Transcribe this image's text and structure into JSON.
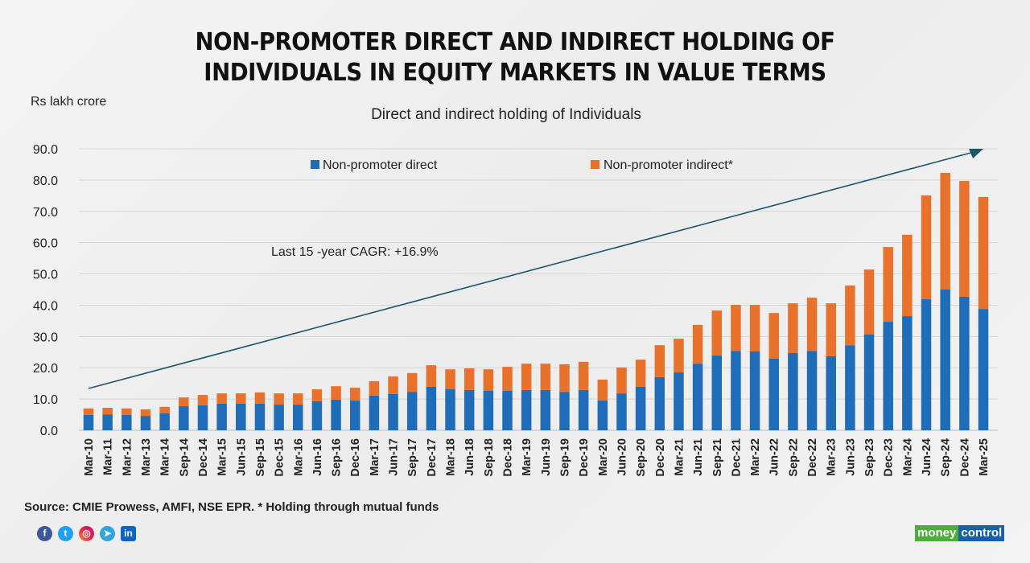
{
  "title_line1": "NON-PROMOTER DIRECT AND INDIRECT HOLDING OF",
  "title_line2": "INDIVIDUALS IN EQUITY MARKETS IN VALUE TERMS",
  "source": "Source: CMIE Prowess, AMFI, NSE EPR. * Holding through mutual funds",
  "logo": {
    "part1": "money",
    "part2": "control"
  },
  "social_icons": [
    "facebook-icon",
    "twitter-icon",
    "instagram-icon",
    "telegram-icon",
    "linkedin-icon"
  ],
  "colors": {
    "direct": "#1f6cb9",
    "indirect": "#e8712b",
    "arrow": "#1d5470"
  },
  "chart_data": {
    "type": "bar",
    "stacked": true,
    "title": "Direct and indirect holding of Individuals",
    "ylabel": "Rs lakh crore",
    "xlabel": "",
    "ylim": [
      0,
      90
    ],
    "yticks": [
      "0.0",
      "10.0",
      "20.0",
      "30.0",
      "40.0",
      "50.0",
      "60.0",
      "70.0",
      "80.0",
      "90.0"
    ],
    "grid": true,
    "legend_placement": "top",
    "annotation": "Last 15 -year CAGR: +16.9%",
    "categories": [
      "Mar-10",
      "Mar-11",
      "Mar-12",
      "Mar-13",
      "Mar-14",
      "Sep-14",
      "Dec-14",
      "Mar-15",
      "Jun-15",
      "Sep-15",
      "Dec-15",
      "Mar-16",
      "Jun-16",
      "Sep-16",
      "Dec-16",
      "Mar-17",
      "Jun-17",
      "Sep-17",
      "Dec-17",
      "Mar-18",
      "Jun-18",
      "Sep-18",
      "Dec-18",
      "Mar-19",
      "Jun-19",
      "Sep-19",
      "Dec-19",
      "Mar-20",
      "Jun-20",
      "Sep-20",
      "Dec-20",
      "Mar-21",
      "Jun-21",
      "Sep-21",
      "Dec-21",
      "Mar-22",
      "Jun-22",
      "Sep-22",
      "Dec-22",
      "Mar-23",
      "Jun-23",
      "Sep-23",
      "Dec-23",
      "Mar-24",
      "Jun-24",
      "Sep-24",
      "Dec-24",
      "Mar-25"
    ],
    "series": [
      {
        "name": "Non-promoter direct",
        "values": [
          4.9,
          5.1,
          4.9,
          4.6,
          5.4,
          7.7,
          8.0,
          8.5,
          8.5,
          8.5,
          8.2,
          8.2,
          9.3,
          9.8,
          9.5,
          11.1,
          11.6,
          12.3,
          13.9,
          13.1,
          12.9,
          12.6,
          12.6,
          12.9,
          12.9,
          12.3,
          12.9,
          9.5,
          11.8,
          13.9,
          17.0,
          18.5,
          21.3,
          23.9,
          25.4,
          25.2,
          22.9,
          24.7,
          25.4,
          23.7,
          27.2,
          30.6,
          34.7,
          36.5,
          41.9,
          45.0,
          42.7,
          38.8
        ]
      },
      {
        "name": "Non-promoter indirect*",
        "values": [
          2.1,
          2.1,
          2.1,
          2.1,
          2.1,
          2.8,
          3.3,
          3.3,
          3.3,
          3.6,
          3.6,
          3.6,
          3.8,
          4.3,
          4.1,
          4.6,
          5.6,
          6.0,
          6.9,
          6.4,
          6.9,
          6.9,
          7.7,
          8.4,
          8.4,
          8.8,
          9.0,
          6.7,
          8.3,
          8.7,
          10.2,
          10.8,
          12.4,
          14.4,
          14.7,
          14.9,
          14.6,
          15.9,
          17.0,
          16.9,
          19.1,
          20.8,
          23.9,
          26.0,
          33.2,
          37.3,
          37.0,
          35.8
        ]
      }
    ]
  }
}
